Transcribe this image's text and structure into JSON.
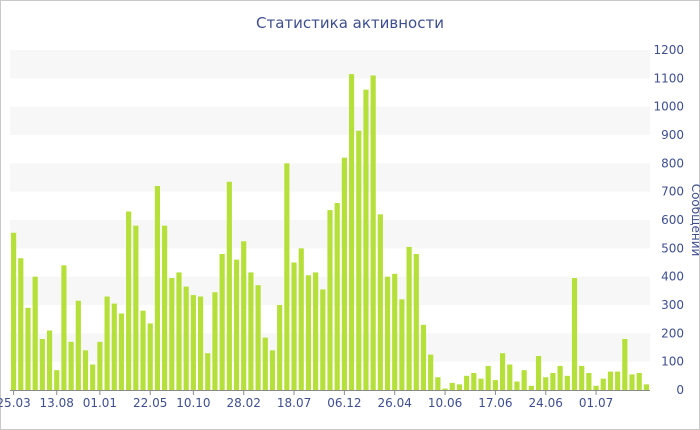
{
  "chart_data": {
    "type": "bar",
    "title": "Статистика активности",
    "xlabel": "",
    "ylabel": "Сообщений",
    "ylim": [
      0,
      1200
    ],
    "yticks": [
      0,
      100,
      200,
      300,
      400,
      500,
      600,
      700,
      800,
      900,
      1000,
      1100,
      1200
    ],
    "y_axis_side": "right",
    "grid": "alternating horizontal bands",
    "x_tick_labels": [
      {
        "index": 0,
        "label": "25.03"
      },
      {
        "index": 6,
        "label": "13.08"
      },
      {
        "index": 12,
        "label": "01.01"
      },
      {
        "index": 19,
        "label": "22.05"
      },
      {
        "index": 25,
        "label": "10.10"
      },
      {
        "index": 32,
        "label": "28.02"
      },
      {
        "index": 39,
        "label": "18.07"
      },
      {
        "index": 46,
        "label": "06.12"
      },
      {
        "index": 53,
        "label": "26.04"
      },
      {
        "index": 60,
        "label": "10.06"
      },
      {
        "index": 67,
        "label": "17.06"
      },
      {
        "index": 74,
        "label": "24.06"
      },
      {
        "index": 81,
        "label": "01.07"
      }
    ],
    "values": [
      555,
      465,
      290,
      400,
      180,
      210,
      70,
      440,
      170,
      315,
      140,
      90,
      170,
      330,
      305,
      270,
      630,
      580,
      280,
      235,
      720,
      580,
      395,
      415,
      365,
      335,
      330,
      130,
      345,
      480,
      735,
      460,
      525,
      415,
      370,
      185,
      140,
      300,
      800,
      450,
      500,
      405,
      415,
      355,
      635,
      660,
      820,
      1115,
      915,
      1060,
      1110,
      620,
      400,
      410,
      320,
      505,
      480,
      230,
      125,
      45,
      5,
      25,
      20,
      50,
      60,
      40,
      85,
      35,
      130,
      90,
      30,
      70,
      15,
      120,
      45,
      60,
      85,
      50,
      395,
      85,
      60,
      15,
      40,
      65,
      65,
      180,
      55,
      60,
      20
    ],
    "bar_color": "#b5e03a",
    "band_color": "#f7f7f7",
    "axis_text_color": "#3e4f8f"
  }
}
